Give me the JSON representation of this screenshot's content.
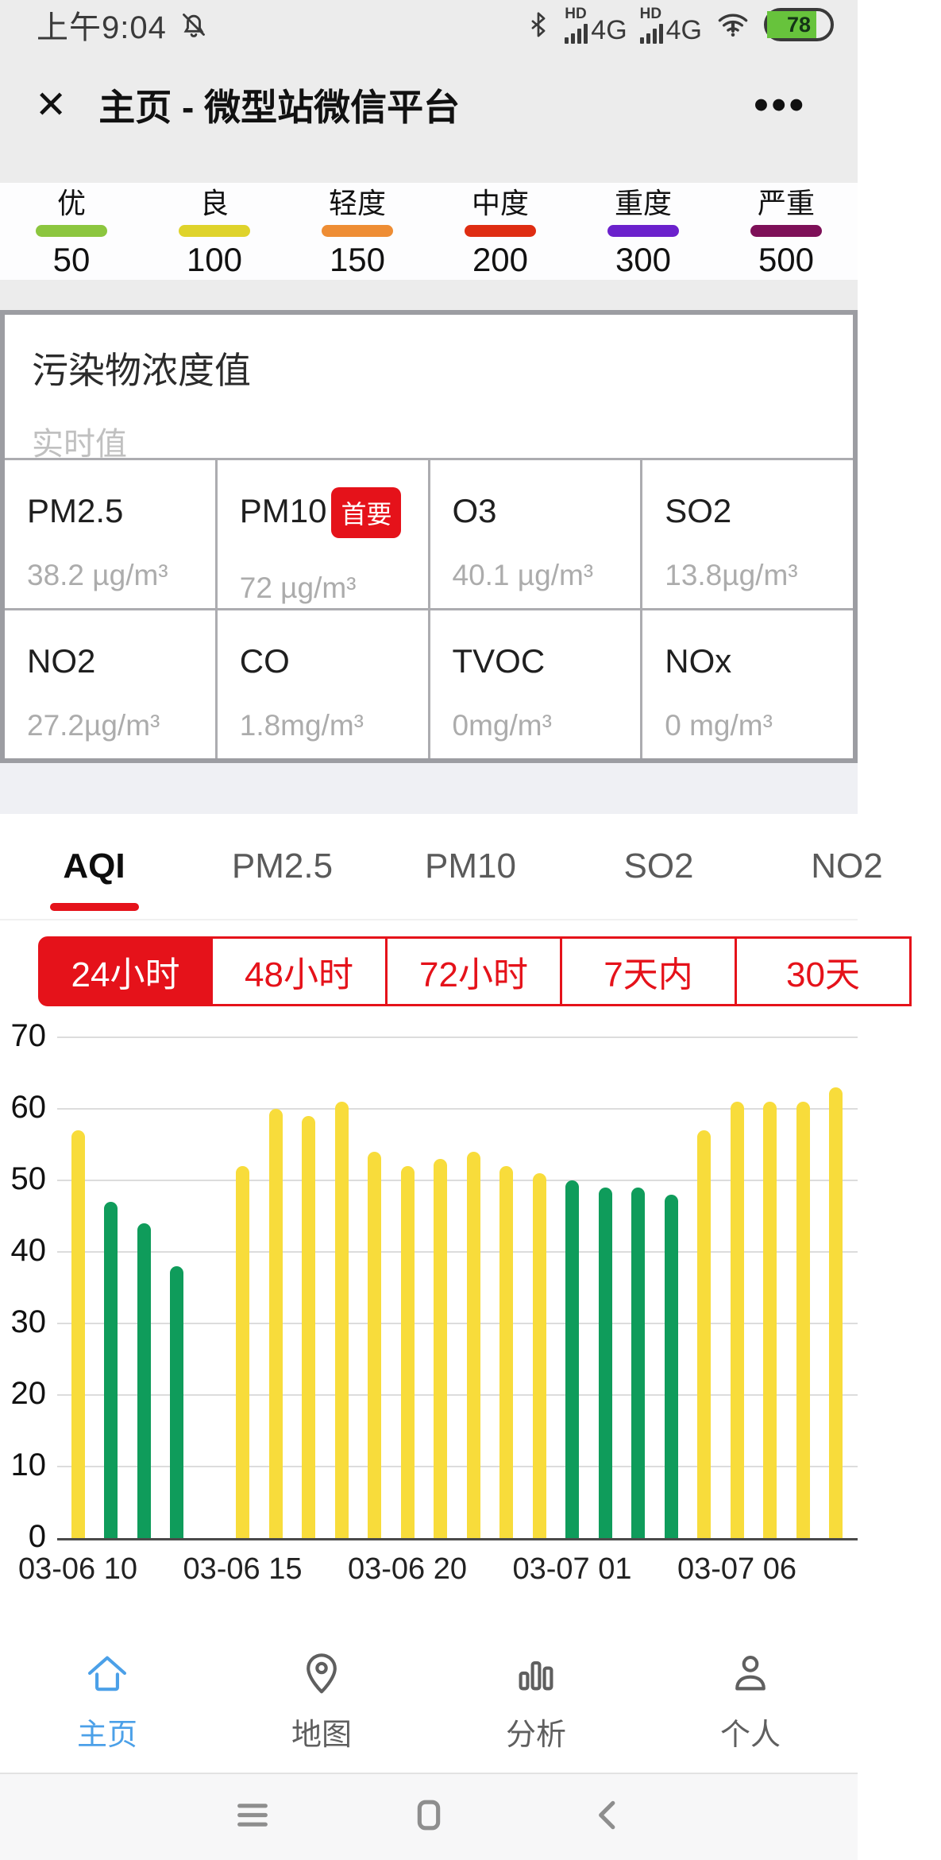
{
  "status_bar": {
    "time": "上午9:04",
    "hd_label": "HD",
    "sim1_net": "4G",
    "sim2_net": "4G",
    "battery_percent": "78"
  },
  "header": {
    "close_label": "✕",
    "title": "主页 - 微型站微信平台",
    "more_label": "•••"
  },
  "aqi_legend": {
    "items": [
      {
        "label": "优",
        "threshold": "50",
        "color": "#8CC63F"
      },
      {
        "label": "良",
        "threshold": "100",
        "color": "#DFD32B"
      },
      {
        "label": "轻度",
        "threshold": "150",
        "color": "#EE8D34"
      },
      {
        "label": "中度",
        "threshold": "200",
        "color": "#DF2D12"
      },
      {
        "label": "重度",
        "threshold": "300",
        "color": "#6B21CC"
      },
      {
        "label": "严重",
        "threshold": "500",
        "color": "#7E1058"
      }
    ]
  },
  "pollutants": {
    "title": "污染物浓度值",
    "subtitle": "实时值",
    "primary_badge": "首要",
    "cells": [
      {
        "name": "PM2.5",
        "value": "38.2 µg/m³"
      },
      {
        "name": "PM10",
        "value": "72 µg/m³",
        "primary": true
      },
      {
        "name": "O3",
        "value": "40.1 µg/m³"
      },
      {
        "name": "SO2",
        "value": "13.8µg/m³"
      },
      {
        "name": "NO2",
        "value": "27.2µg/m³"
      },
      {
        "name": "CO",
        "value": "1.8mg/m³"
      },
      {
        "name": "TVOC",
        "value": "0mg/m³"
      },
      {
        "name": "NOx",
        "value": "0 mg/m³"
      }
    ]
  },
  "metric_tabs": {
    "items": [
      {
        "label": "AQI"
      },
      {
        "label": "PM2.5"
      },
      {
        "label": "PM10"
      },
      {
        "label": "SO2"
      },
      {
        "label": "NO2"
      }
    ],
    "active_index": 0
  },
  "range_tabs": {
    "items": [
      {
        "label": "24小时"
      },
      {
        "label": "48小时"
      },
      {
        "label": "72小时"
      },
      {
        "label": "7天内"
      },
      {
        "label": "30天"
      }
    ],
    "active_index": 0
  },
  "chart_data": {
    "type": "bar",
    "series_name": "AQI",
    "ylim": [
      0,
      70
    ],
    "yticks": [
      0,
      10,
      20,
      30,
      40,
      50,
      60,
      70
    ],
    "grid": true,
    "x": [
      "03-06 10",
      "03-06 11",
      "03-06 12",
      "03-06 13",
      "03-06 14",
      "03-06 15",
      "03-06 16",
      "03-06 17",
      "03-06 18",
      "03-06 19",
      "03-06 20",
      "03-06 21",
      "03-06 22",
      "03-06 23",
      "03-07 00",
      "03-07 01",
      "03-07 02",
      "03-07 03",
      "03-07 04",
      "03-07 05",
      "03-07 06",
      "03-07 07",
      "03-07 08",
      "03-07 09"
    ],
    "values": [
      57,
      47,
      44,
      38,
      null,
      52,
      60,
      59,
      61,
      54,
      52,
      53,
      54,
      52,
      51,
      50,
      49,
      49,
      48,
      57,
      61,
      61,
      61,
      63
    ],
    "x_tick_indices": [
      0,
      5,
      10,
      15,
      20
    ],
    "x_tick_labels": [
      "03-06 10",
      "03-06 15",
      "03-06 20",
      "03-07 01",
      "03-07 06"
    ],
    "color_rule": "value <= 50 green, else yellow",
    "color_green": "#0F9C5B",
    "color_yellow": "#F8DC3B"
  },
  "bottom_nav": {
    "items": [
      {
        "icon": "home-icon",
        "label": "主页"
      },
      {
        "icon": "map-pin-icon",
        "label": "地图"
      },
      {
        "icon": "bar-chart-icon",
        "label": "分析"
      },
      {
        "icon": "person-icon",
        "label": "个人"
      }
    ],
    "active_index": 0
  },
  "android_nav": {
    "buttons": [
      "menu",
      "home",
      "back"
    ]
  }
}
